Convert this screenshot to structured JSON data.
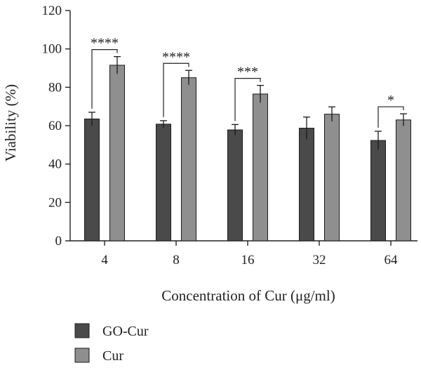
{
  "chart_data": {
    "type": "bar",
    "categories": [
      "4",
      "8",
      "16",
      "32",
      "64"
    ],
    "series": [
      {
        "name": "GO-Cur",
        "values": [
          63.5,
          60.8,
          57.8,
          58.7,
          52.3
        ],
        "errors": [
          3.5,
          1.8,
          2.8,
          5.8,
          4.8
        ],
        "color": "#4a4a4a"
      },
      {
        "name": "Cur",
        "values": [
          91.5,
          85.0,
          76.5,
          66.0,
          63.0
        ],
        "errors": [
          4.5,
          3.8,
          4.5,
          3.8,
          3.2
        ],
        "color": "#8f8f8f"
      }
    ],
    "significance": [
      {
        "category": "4",
        "label": "****"
      },
      {
        "category": "8",
        "label": "****"
      },
      {
        "category": "16",
        "label": "***"
      },
      {
        "category": "64",
        "label": "*"
      }
    ],
    "ylim": [
      0,
      120
    ],
    "yticks": [
      0,
      20,
      40,
      60,
      80,
      100,
      120
    ],
    "xlabel": "Concentration of Cur (μg/ml)",
    "ylabel": "Viability (%)",
    "grid": false,
    "legend_position": "bottom-left"
  }
}
